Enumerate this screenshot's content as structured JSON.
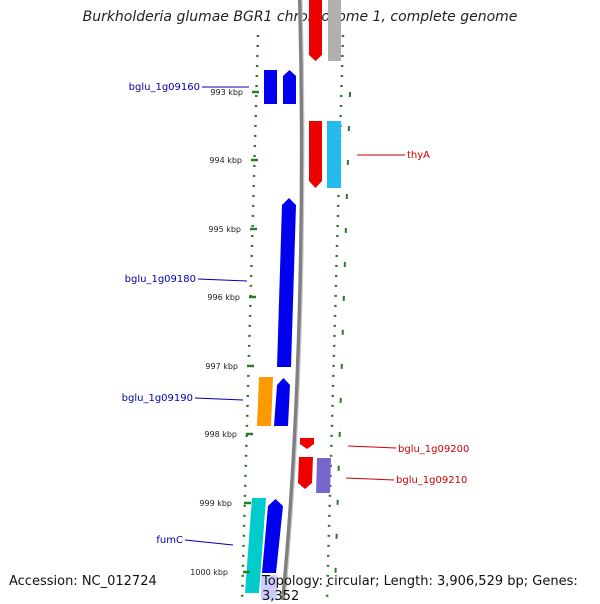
{
  "title": "Burkholderia glumae BGR1 chromosome 1, complete genome",
  "footer": {
    "accession": "Accession: NC_012724",
    "topology": "Topology: circular; Length: 3,906,529 bp; Genes: 3,352"
  },
  "colors": {
    "forward_gene": "#0000ee",
    "reverse_gene": "#ee0000",
    "forward_label": "#0000aa",
    "reverse_label": "#cc0000",
    "backbone": "#808080",
    "ticks": "#2a7a2a",
    "rna_cyan": "#00cccc",
    "orange": "#ff9900",
    "purple": "#7766cc",
    "grey": "#b0b0b0",
    "sky": "#22bbee"
  },
  "axis": {
    "unit": "kbp",
    "ticks": [
      "993 kbp",
      "994 kbp",
      "995 kbp",
      "996 kbp",
      "997 kbp",
      "998 kbp",
      "999 kbp",
      "1000 kbp"
    ]
  },
  "labels": {
    "left": [
      "bglu_1g09160",
      "bglu_1g09180",
      "bglu_1g09190",
      "fumC"
    ],
    "right": [
      "thyA",
      "bglu_1g09200",
      "bglu_1g09210"
    ]
  }
}
